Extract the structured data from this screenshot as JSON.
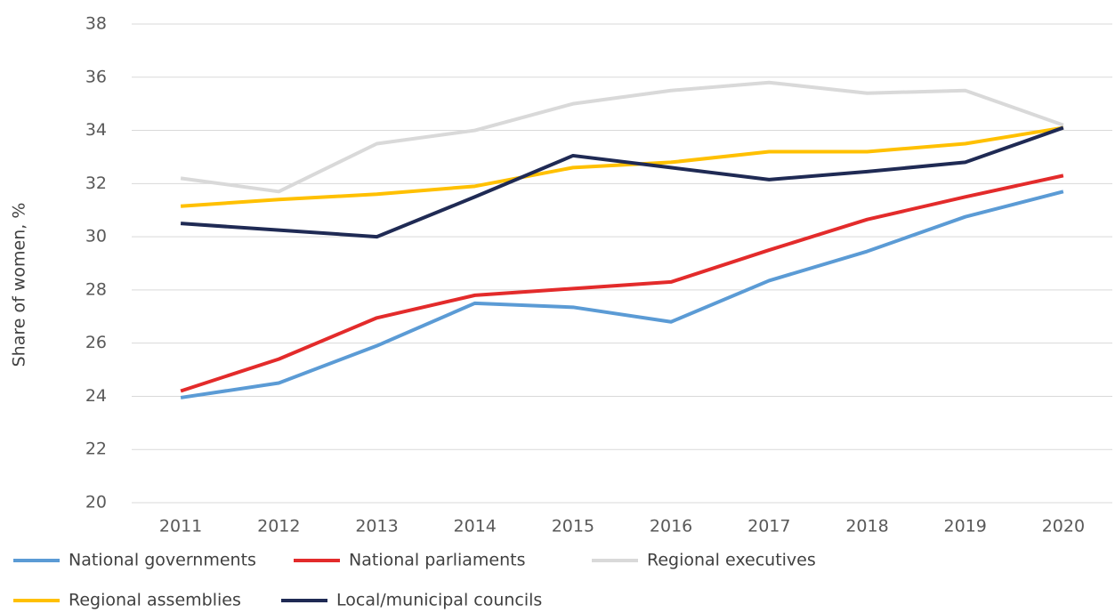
{
  "chart_data": {
    "type": "line",
    "y_label": "Share of women, %",
    "categories": [
      "2011",
      "2012",
      "2013",
      "2014",
      "2015",
      "2016",
      "2017",
      "2018",
      "2019",
      "2020"
    ],
    "series": [
      {
        "name": "National governments",
        "color": "#5b9bd5",
        "values": [
          23.95,
          24.5,
          25.9,
          27.5,
          27.35,
          26.8,
          28.35,
          29.45,
          30.75,
          31.7
        ]
      },
      {
        "name": "National parliaments",
        "color": "#e32b2b",
        "values": [
          24.2,
          25.4,
          26.95,
          27.8,
          28.05,
          28.3,
          29.5,
          30.65,
          31.5,
          32.3
        ]
      },
      {
        "name": "Regional executives",
        "color": "#d9d9d9",
        "values": [
          32.2,
          31.7,
          33.5,
          34.0,
          35.0,
          35.5,
          35.8,
          35.4,
          35.5,
          34.2
        ]
      },
      {
        "name": "Regional assemblies",
        "color": "#ffc000",
        "values": [
          31.15,
          31.4,
          31.6,
          31.9,
          32.6,
          32.8,
          33.2,
          33.2,
          33.5,
          34.1
        ]
      },
      {
        "name": "Local/municipal councils",
        "color": "#1f2a54",
        "values": [
          30.5,
          30.25,
          30.0,
          31.5,
          33.05,
          32.6,
          32.15,
          32.45,
          32.8,
          34.1
        ]
      }
    ],
    "ylim": [
      20,
      38
    ],
    "yticks": [
      20,
      22,
      24,
      26,
      28,
      30,
      32,
      34,
      36,
      38
    ],
    "grid": true
  }
}
